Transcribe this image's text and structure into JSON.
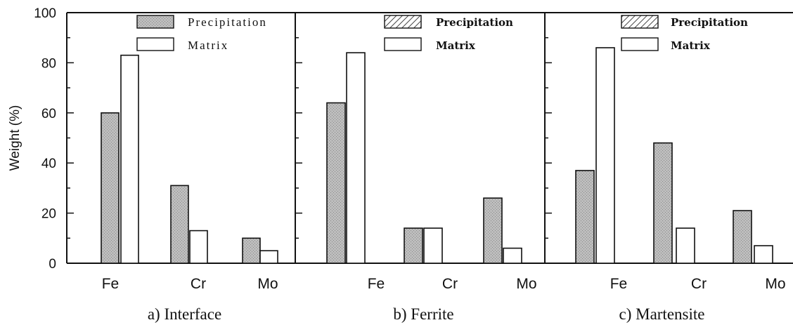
{
  "chart_data": {
    "type": "bar",
    "ylabel": "Weight (%)",
    "ylim": [
      0,
      100
    ],
    "yticks": [
      0,
      20,
      40,
      60,
      80,
      100
    ],
    "legend_placement": "top-right",
    "colors": {
      "precipitation": "#bdbdbd",
      "matrix": "#ffffff",
      "stroke": "#111111"
    },
    "panels": [
      {
        "caption": "a) Interface",
        "categories": [
          "Fe",
          "Cr",
          "Mo"
        ],
        "series": [
          {
            "name": "Precipitation",
            "values": [
              60,
              31,
              10
            ]
          },
          {
            "name": "Matrix",
            "values": [
              83,
              13,
              5
            ]
          }
        ],
        "legend": [
          "Precipitation",
          "Matrix"
        ]
      },
      {
        "caption": "b) Ferrite",
        "categories": [
          "Fe",
          "Cr",
          "Mo"
        ],
        "series": [
          {
            "name": "Precipitation",
            "values": [
              64,
              14,
              26
            ]
          },
          {
            "name": "Matrix",
            "values": [
              84,
              14,
              6
            ]
          }
        ],
        "legend": [
          "Precipitation",
          "Matrix"
        ]
      },
      {
        "caption": "c) Martensite",
        "categories": [
          "Fe",
          "Cr",
          "Mo"
        ],
        "series": [
          {
            "name": "Precipitation",
            "values": [
              37,
              48,
              21
            ]
          },
          {
            "name": "Matrix",
            "values": [
              86,
              14,
              7
            ]
          }
        ],
        "legend": [
          "Precipitation",
          "Matrix"
        ]
      }
    ]
  }
}
